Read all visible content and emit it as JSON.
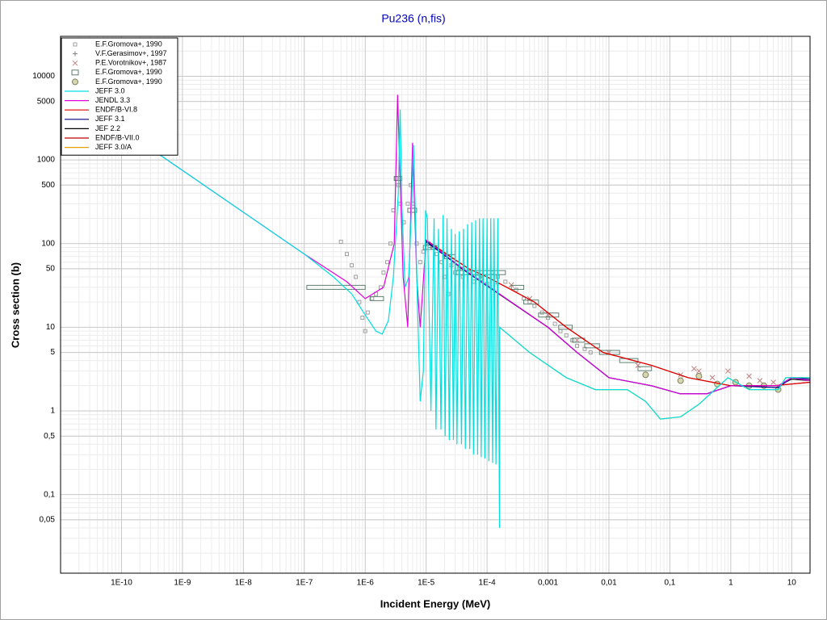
{
  "chart_data": {
    "type": "line",
    "title": "Pu236 (n,fis)",
    "x_label": "Incident Energy (MeV)",
    "y_label": "Cross section (b)",
    "xlog": true,
    "ylog": true,
    "grid": true,
    "minor_grid": true,
    "legend": "upper-left",
    "xlim": [
      1e-11,
      20
    ],
    "ylim": [
      0.0115,
      30000
    ],
    "xticks": [
      {
        "value": 1e-10,
        "label": "1E-10"
      },
      {
        "value": 1e-09,
        "label": "1E-9"
      },
      {
        "value": 1e-08,
        "label": "1E-8"
      },
      {
        "value": 1e-07,
        "label": "1E-7"
      },
      {
        "value": 1e-06,
        "label": "1E-6"
      },
      {
        "value": 1e-05,
        "label": "1E-5"
      },
      {
        "value": 0.0001,
        "label": "1E-4"
      },
      {
        "value": 0.001,
        "label": "0,001"
      },
      {
        "value": 0.01,
        "label": "0,01"
      },
      {
        "value": 0.1,
        "label": "0,1"
      },
      1,
      10
    ],
    "yticks": [
      10000,
      5000,
      1000,
      500,
      100,
      50,
      10,
      5,
      1,
      {
        "value": 0.5,
        "label": "0,5"
      },
      {
        "value": 0.1,
        "label": "0,1"
      },
      {
        "value": 0.05,
        "label": "0,05"
      }
    ],
    "series": [
      {
        "name": "E.F.Gromova+, 1990",
        "style": "dot",
        "color": "#a0a0a0",
        "x": [
          4e-07,
          5e-07,
          6e-07,
          7e-07,
          8e-07,
          9e-07,
          1e-06,
          1.1e-06,
          1.3e-06,
          1.5e-06,
          1.8e-06,
          2e-06,
          2.3e-06,
          2.6e-06,
          2.9e-06,
          3.2e-06,
          3.5e-06,
          3.8e-06,
          4.3e-06,
          5e-06,
          5.6e-06,
          6.2e-06,
          7e-06,
          8e-06,
          9e-06,
          1.1e-05,
          1.3e-05,
          1.5e-05,
          1.8e-05,
          2e-05,
          2.3e-05,
          2.6e-05,
          3e-05,
          3.5e-05,
          4e-05,
          5e-05,
          6e-05,
          7e-05,
          8e-05,
          0.0001,
          0.00012,
          0.00015,
          0.0002,
          0.0003,
          0.0004,
          0.0005,
          0.0006,
          0.0008,
          0.001,
          0.0013,
          0.0016,
          0.002,
          0.0025,
          0.003,
          0.004,
          0.005
        ],
        "values": [
          105,
          75,
          55,
          40,
          20,
          13,
          9,
          15,
          22,
          25,
          30,
          45,
          60,
          100,
          250,
          600,
          500,
          300,
          180,
          300,
          500,
          300,
          100,
          60,
          80,
          100,
          90,
          75,
          60,
          40,
          25,
          55,
          45,
          50,
          40,
          45,
          35,
          40,
          38,
          33,
          45,
          40,
          35,
          28,
          22,
          20,
          18,
          15,
          13,
          11,
          9,
          8,
          7,
          6,
          5.5,
          5
        ]
      },
      {
        "name": "V.F.Gerasimov+, 1997",
        "style": "plus",
        "color": "#808080",
        "x": [
          1.2e-05,
          2e-05,
          4e-05,
          8e-05,
          0.00015
        ],
        "values": [
          90,
          70,
          50,
          40,
          33
        ]
      },
      {
        "name": "P.E.Vorotnikov+, 1987",
        "style": "x",
        "color": "#c08080",
        "x": [
          0.00025,
          0.0005,
          0.001,
          0.003,
          0.01,
          0.03,
          0.15,
          0.25,
          0.3,
          0.5,
          0.9,
          2,
          3,
          5
        ],
        "values": [
          32,
          22,
          14,
          7,
          5,
          3.5,
          2.7,
          3.2,
          3,
          2.5,
          3,
          2.6,
          2.3,
          2.2
        ]
      },
      {
        "name": "E.F.Gromova+, 1990",
        "style": "box",
        "color": "#608070",
        "x_lo": [
          1.1e-07,
          1.2e-06,
          3e-06,
          5e-06,
          9e-06,
          2e-05,
          3e-05,
          0.0001,
          0.00025,
          0.0004,
          0.0007,
          0.0015,
          0.0025,
          0.004,
          0.007,
          0.015,
          0.03
        ],
        "x_hi": [
          1e-06,
          2e-06,
          4e-06,
          7e-06,
          1.5e-05,
          3e-05,
          0.0001,
          0.0002,
          0.0004,
          0.0007,
          0.0015,
          0.0025,
          0.004,
          0.007,
          0.015,
          0.03,
          0.05
        ],
        "values": [
          30,
          22,
          600,
          250,
          90,
          70,
          45,
          45,
          30,
          20,
          14,
          10,
          7,
          6,
          5,
          4,
          3.2
        ]
      },
      {
        "name": "E.F.Gromova+, 1990",
        "style": "circle",
        "color": "#808060",
        "x": [
          0.04,
          0.15,
          0.3,
          0.6,
          1.2,
          2,
          3.5,
          6
        ],
        "values": [
          2.7,
          2.3,
          2.6,
          2.1,
          2.2,
          2,
          2,
          1.8
        ]
      },
      {
        "name": "JEFF 3.0",
        "style": "line",
        "color": "#00e0e0",
        "x": [
          1e-11,
          1e-07,
          3e-07,
          6e-07,
          1e-06,
          1.5e-06,
          1.9e-06,
          2.4e-06,
          2.9e-06,
          3.5e-06,
          3.75e-06,
          4e-06,
          4.5e-06,
          5.2e-06,
          5.8e-06,
          6.2e-06,
          6.6e-06,
          7.2e-06,
          8e-06,
          9e-06,
          9.8e-06,
          1.05e-05,
          1.2e-05,
          1.35e-05,
          1.45e-05,
          1.6e-05,
          1.75e-05,
          1.9e-05,
          2.05e-05,
          2.2e-05,
          2.4e-05,
          2.6e-05,
          2.8e-05,
          3e-05,
          3.2e-05,
          3.5e-05,
          3.8e-05,
          4.1e-05,
          4.4e-05,
          4.8e-05,
          5.2e-05,
          5.6e-05,
          6e-05,
          6.5e-05,
          7e-05,
          7.5e-05,
          8e-05,
          8.6e-05,
          9.2e-05,
          0.0001,
          0.000107,
          0.000115,
          0.000123,
          0.00013,
          0.00014,
          0.00015,
          0.00016,
          0.000161,
          0.0005,
          0.002,
          0.006,
          0.02,
          0.04,
          0.07,
          0.15,
          0.3,
          0.9,
          2,
          6,
          8,
          20
        ],
        "values": [
          7500,
          75,
          40,
          25,
          14,
          9,
          8.3,
          12,
          40,
          400,
          4000,
          300,
          30,
          40,
          300,
          1500,
          300,
          20,
          1.3,
          3,
          250,
          200,
          1,
          200,
          0.6,
          150,
          0.6,
          220,
          0.5,
          200,
          0.45,
          150,
          0.45,
          130,
          0.4,
          140,
          0.4,
          150,
          0.35,
          170,
          0.35,
          180,
          0.3,
          190,
          0.3,
          200,
          0.28,
          200,
          0.27,
          200,
          0.25,
          200,
          0.24,
          200,
          0.23,
          200,
          0.04,
          10,
          5,
          2.5,
          1.8,
          1.8,
          1.3,
          0.8,
          0.85,
          1.2,
          2.5,
          1.8,
          1.8,
          2.5,
          2.5
        ]
      },
      {
        "name": "JENDL 3.3",
        "style": "line",
        "color": "#e000e0",
        "x": [
          1e-11,
          1e-07,
          5e-07,
          1e-06,
          2e-06,
          3e-06,
          3.4e-06,
          4.2e-06,
          5e-06,
          6e-06,
          7e-06,
          8e-06,
          1e-05,
          4e-05,
          0.001,
          0.003,
          0.01,
          0.05,
          0.15,
          0.4,
          1,
          6,
          10,
          20
        ],
        "values": [
          7500,
          75,
          35,
          22,
          30,
          100,
          6000,
          40,
          10,
          1600,
          40,
          10,
          110,
          50,
          10,
          5,
          2.5,
          2,
          1.6,
          1.6,
          2,
          2,
          2.5,
          2.3
        ]
      },
      {
        "name": "ENDF/B-VI.8",
        "style": "line",
        "color": "#e00000",
        "x": [
          1e-05,
          5e-05,
          0.0001,
          0.0006,
          0.002,
          0.008,
          0.05,
          0.2,
          1,
          5,
          20
        ],
        "values": [
          110,
          50,
          40,
          20,
          10,
          5,
          3.5,
          2.5,
          2,
          2,
          2.2
        ]
      },
      {
        "name": "JEFF 3.1",
        "style": "line",
        "color": "#000080",
        "x": [
          1e-05,
          4e-05,
          0.001,
          0.003,
          0.01,
          0.05,
          0.15,
          0.4,
          1,
          6,
          10,
          20
        ],
        "values": [
          105,
          50,
          10,
          5,
          2.5,
          2,
          1.6,
          1.6,
          2,
          1.9,
          2.5,
          2.4
        ]
      },
      {
        "name": "JEF 2.2",
        "style": "line",
        "color": "#000000",
        "x": [
          1e-05,
          4e-05,
          0.001,
          0.003,
          0.01,
          0.05,
          0.15,
          0.4,
          1,
          6,
          10,
          20
        ],
        "values": [
          108,
          49,
          10,
          5,
          2.5,
          2,
          1.6,
          1.6,
          2,
          2,
          2.4,
          2.3
        ]
      },
      {
        "name": "ENDF/B-VII.0",
        "style": "line",
        "color": "#c00000",
        "x": [
          1e-05,
          5e-05,
          0.0001,
          0.0006,
          0.002,
          0.008,
          0.05,
          0.2,
          1,
          5,
          20
        ],
        "values": [
          108,
          50,
          40,
          20,
          10,
          5,
          3.5,
          2.5,
          2,
          2,
          2.2
        ]
      },
      {
        "name": "JEFF 3.0/A",
        "style": "line",
        "color": "#e0a000",
        "x": [
          0.000161,
          0.0005,
          0.002,
          0.006,
          0.02,
          0.04,
          0.07,
          0.15,
          0.3,
          0.9,
          2,
          6,
          8,
          20
        ],
        "values": [
          10,
          5,
          2.5,
          1.8,
          1.8,
          1.3,
          0.8,
          0.85,
          1.2,
          2.5,
          1.8,
          1.8,
          2.5,
          2.5
        ]
      }
    ]
  }
}
